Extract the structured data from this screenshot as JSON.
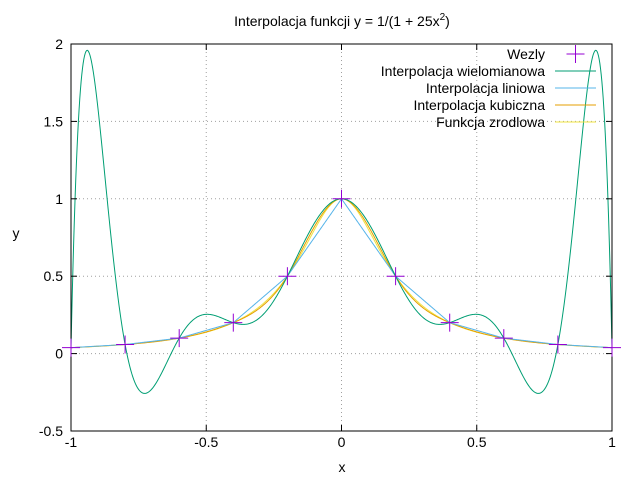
{
  "chart_data": {
    "type": "line",
    "title_main": "Interpolacja funkcji y = 1/(1 + 25x",
    "title_sup": "2",
    "title_end": ")",
    "xlabel": "x",
    "ylabel": "y",
    "xlim": [
      -1,
      1
    ],
    "ylim": [
      -0.5,
      2
    ],
    "xticks": [
      -1,
      -0.5,
      0,
      0.5,
      1
    ],
    "xtick_labels": [
      "-1",
      "-0.5",
      "0",
      "0.5",
      "1"
    ],
    "yticks": [
      -0.5,
      0,
      0.5,
      1,
      1.5,
      2
    ],
    "ytick_labels": [
      "-0.5",
      "0",
      "0.5",
      "1",
      "1.5",
      "2"
    ],
    "grid": true,
    "legend_position": "top-right",
    "nodes_x": [
      -1,
      -0.8,
      -0.6,
      -0.4,
      -0.2,
      0,
      0.2,
      0.4,
      0.6,
      0.8,
      1
    ],
    "series": [
      {
        "name": "Wezly",
        "kind": "points",
        "color": "#9400d3"
      },
      {
        "name": "Interpolacja wielomianowa",
        "kind": "polynomial",
        "color": "#009e73"
      },
      {
        "name": "Interpolacja liniowa",
        "kind": "linear",
        "color": "#56b4e9"
      },
      {
        "name": "Interpolacja kubiczna",
        "kind": "cubic",
        "color": "#e69f00"
      },
      {
        "name": "Funkcja zrodlowa",
        "kind": "source",
        "color": "#f0e442"
      }
    ]
  }
}
